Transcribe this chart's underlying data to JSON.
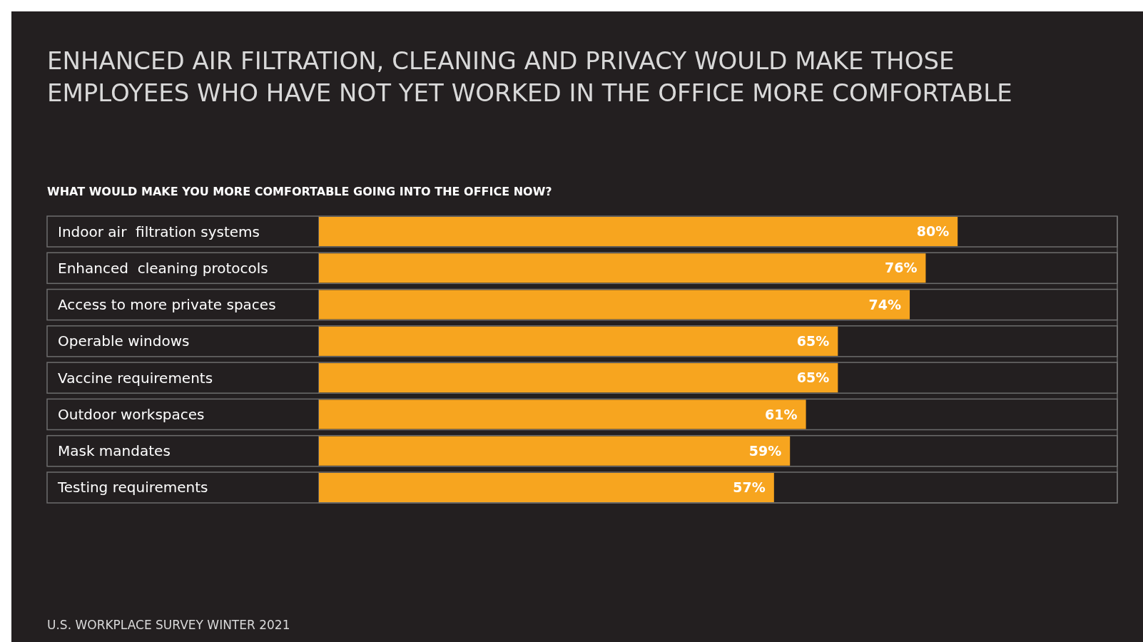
{
  "chart_data": {
    "type": "bar",
    "orientation": "horizontal",
    "title": "ENHANCED AIR FILTRATION, CLEANING AND PRIVACY WOULD MAKE THOSE EMPLOYEES WHO HAVE NOT YET WORKED IN THE OFFICE MORE COMFORTABLE",
    "subtitle": "WHAT WOULD MAKE YOU MORE COMFORTABLE GOING INTO THE OFFICE NOW?",
    "categories": [
      "Indoor air  filtration systems",
      "Enhanced  cleaning protocols",
      "Access to more private spaces",
      "Operable windows",
      "Vaccine requirements",
      "Outdoor workspaces",
      "Mask mandates",
      "Testing requirements"
    ],
    "values": [
      80,
      76,
      74,
      65,
      65,
      61,
      59,
      57
    ],
    "value_labels": [
      "80%",
      "76%",
      "74%",
      "65%",
      "65%",
      "61%",
      "59%",
      "57%"
    ],
    "color": "#f7a51f",
    "xlim": [
      0,
      100
    ],
    "tick_labels": "y",
    "annotations": [
      "U.S. WORKPLACE SURVEY WINTER 2021"
    ]
  }
}
